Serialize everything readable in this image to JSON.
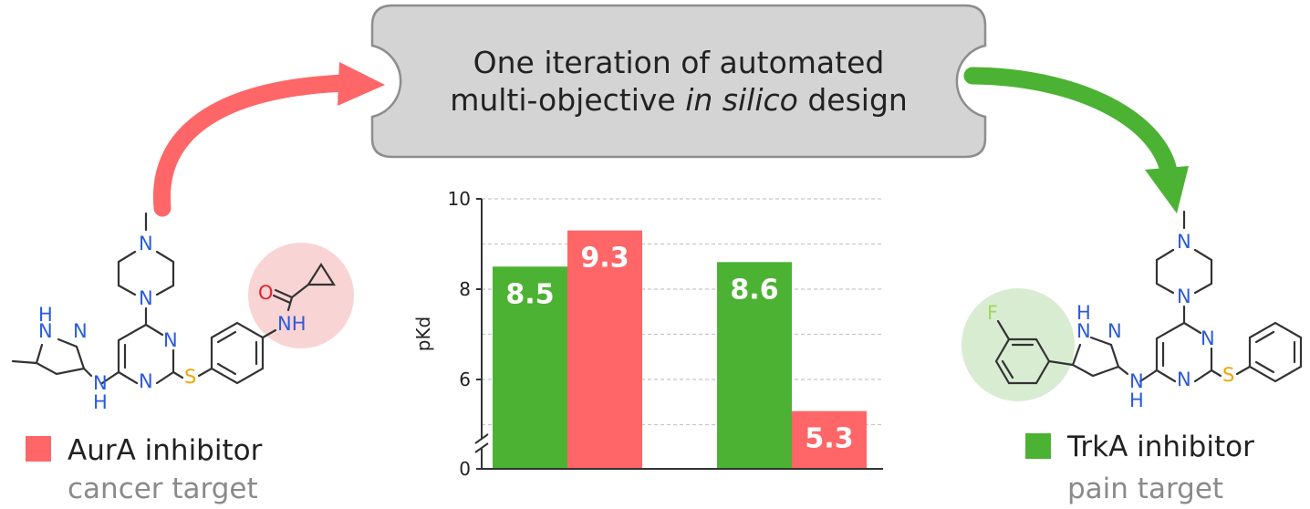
{
  "banner": {
    "line1": "One iteration of automated",
    "line2_a": "multi-objective ",
    "line2_italic": "in silico",
    "line2_b": " design"
  },
  "left_compound": {
    "legend_label": "AurA inhibitor",
    "legend_sub": "cancer target",
    "color": "#fe6667",
    "highlight_color": "#f9d4d4",
    "atoms": {
      "n": "N",
      "h": "H",
      "nh": "NH",
      "hn": "H",
      "o": "O",
      "s": "S"
    }
  },
  "right_compound": {
    "legend_label": "TrkA inhibitor",
    "legend_sub": "pain target",
    "color": "#4cb233",
    "highlight_color": "#d8ecd2",
    "atoms": {
      "n": "N",
      "h": "H",
      "hn": "H",
      "f": "F",
      "s": "S"
    }
  },
  "colors": {
    "nitrogen": "#2a5bdc",
    "oxygen": "#e3242b",
    "sulfur": "#f0a500",
    "fluorine": "#a4d65e",
    "banner_fill": "#d4d4d4",
    "banner_stroke": "#8d8d8d"
  },
  "chart_data": {
    "type": "bar",
    "ylabel": "pKd",
    "ylim": [
      0,
      10
    ],
    "axis_break": true,
    "yticks": [
      "0",
      "6",
      "8",
      "10"
    ],
    "grid": true,
    "series": [
      {
        "color": "#4cb233",
        "values": [
          8.5,
          8.6
        ],
        "labels": [
          "8.5",
          "8.6"
        ]
      },
      {
        "color": "#fe6667",
        "values": [
          9.3,
          5.3
        ],
        "labels": [
          "9.3",
          "5.3"
        ]
      }
    ]
  }
}
